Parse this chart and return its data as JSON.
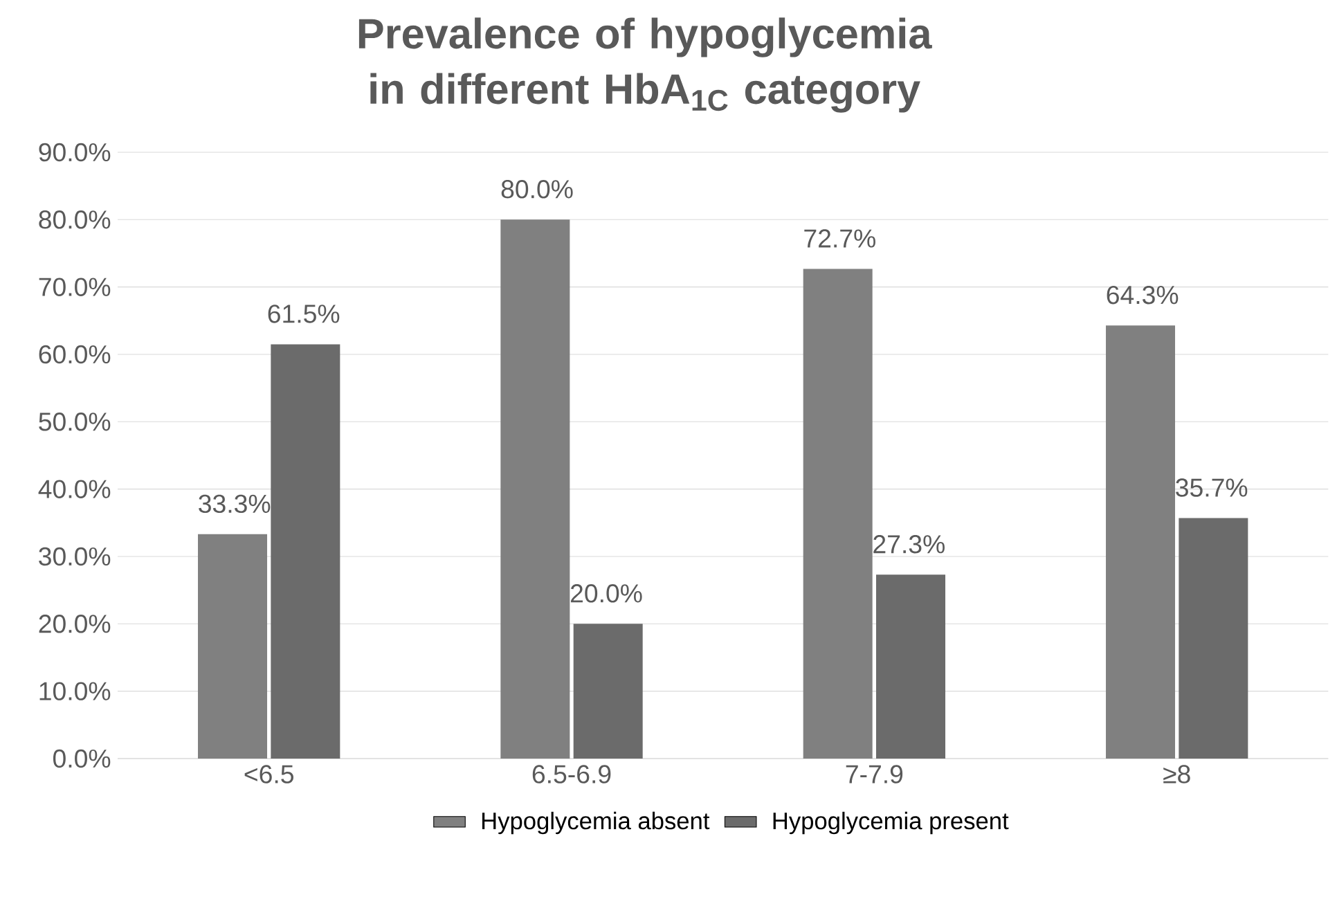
{
  "chart_data": {
    "type": "bar",
    "title": "Prevalence of hypoglycemia in different HbA$_{1C}$ category",
    "categories": [
      "<6.5",
      "6.5-6.9",
      "7-7.9",
      "≥8"
    ],
    "series": [
      {
        "name": "Hypoglycemia absent",
        "color": "#808080",
        "values": [
          33.3,
          80.0,
          72.7,
          64.3
        ],
        "value_labels": [
          "33.3%",
          "80.0%",
          "72.7%",
          "64.3%"
        ]
      },
      {
        "name": "Hypoglycemia present",
        "color": "#6b6b6b",
        "values": [
          61.5,
          20.0,
          27.3,
          35.7
        ],
        "value_labels": [
          "61.5%",
          "20.0%",
          "27.3%",
          "35.7%"
        ]
      }
    ],
    "ylim": [
      0,
      90
    ],
    "yticks": [
      {
        "value": 0,
        "label": "0.0%"
      },
      {
        "value": 10,
        "label": "10.0%"
      },
      {
        "value": 20,
        "label": "20.0%"
      },
      {
        "value": 30,
        "label": "30.0%"
      },
      {
        "value": 40,
        "label": "40.0%"
      },
      {
        "value": 50,
        "label": "50.0%"
      },
      {
        "value": 60,
        "label": "60.0%"
      },
      {
        "value": 70,
        "label": "70.0%"
      },
      {
        "value": 80,
        "label": "80.0%"
      },
      {
        "value": 90,
        "label": "90.0%"
      }
    ],
    "grid": "y",
    "legend": "bottom"
  }
}
